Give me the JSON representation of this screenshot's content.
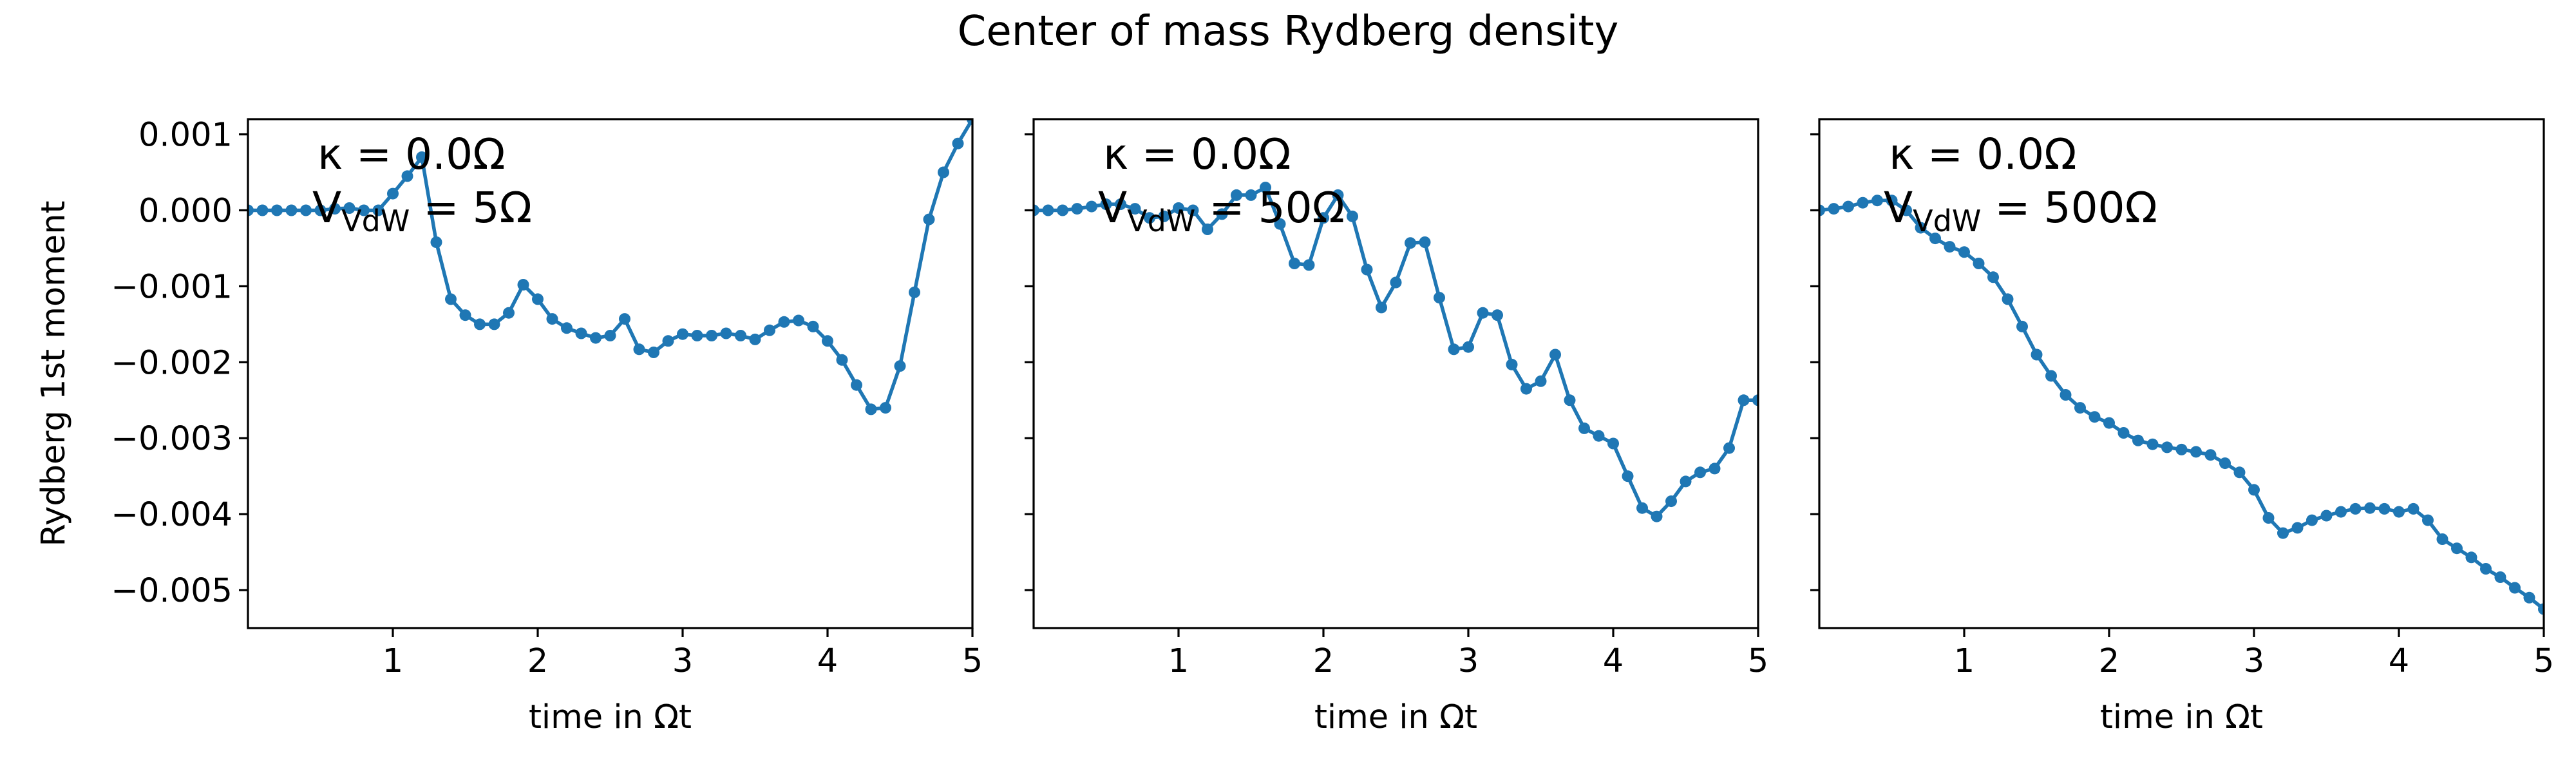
{
  "figure": {
    "title": "Center of mass Rydberg density",
    "series_color": "#1f77b4"
  },
  "chart_data": [
    {
      "type": "line",
      "title": "",
      "xlabel": "time in Ωt",
      "ylabel": "Rydberg 1st moment",
      "xlim": [
        0.0,
        5.0
      ],
      "ylim": [
        -0.0055,
        0.0012
      ],
      "xticks": [
        1,
        2,
        3,
        4,
        5
      ],
      "yticks": [
        0.001,
        0.0,
        -0.001,
        -0.002,
        -0.003,
        -0.004,
        -0.005
      ],
      "ytick_labels": [
        "0.001",
        "0.000",
        "−0.001",
        "−0.002",
        "−0.003",
        "−0.004",
        "−0.005"
      ],
      "grid": false,
      "annotation": {
        "kappa_line": "κ = 0.0Ω",
        "v_symbol": "V",
        "v_subscript": "VdW",
        "v_value": " = 5Ω"
      },
      "x": [
        0.0,
        0.1,
        0.2,
        0.3,
        0.4,
        0.5,
        0.6,
        0.7,
        0.8,
        0.9,
        1.0,
        1.1,
        1.2,
        1.3,
        1.4,
        1.5,
        1.6,
        1.7,
        1.8,
        1.9,
        2.0,
        2.1,
        2.2,
        2.3,
        2.4,
        2.5,
        2.6,
        2.7,
        2.8,
        2.9,
        3.0,
        3.1,
        3.2,
        3.3,
        3.4,
        3.5,
        3.6,
        3.7,
        3.8,
        3.9,
        4.0,
        4.1,
        4.2,
        4.3,
        4.4,
        4.5,
        4.6,
        4.7,
        4.8,
        4.9,
        5.0
      ],
      "y": [
        0.0,
        0.0,
        0.0,
        0.0,
        0.0,
        0.0,
        2e-05,
        3e-05,
        0.0,
        0.0,
        0.00022,
        0.00045,
        0.0007,
        -0.00042,
        -0.00117,
        -0.00138,
        -0.0015,
        -0.0015,
        -0.00135,
        -0.00098,
        -0.00117,
        -0.00143,
        -0.00155,
        -0.00162,
        -0.00168,
        -0.00165,
        -0.00143,
        -0.00183,
        -0.00187,
        -0.00172,
        -0.00163,
        -0.00165,
        -0.00165,
        -0.00162,
        -0.00165,
        -0.0017,
        -0.00158,
        -0.00147,
        -0.00145,
        -0.00153,
        -0.00172,
        -0.00197,
        -0.0023,
        -0.00262,
        -0.0026,
        -0.00205,
        -0.00108,
        -0.00012,
        0.0005,
        0.00088,
        0.0012
      ]
    },
    {
      "type": "line",
      "title": "",
      "xlabel": "time in Ωt",
      "ylabel": "",
      "xlim": [
        0.0,
        5.0
      ],
      "ylim": [
        -0.0055,
        0.0012
      ],
      "xticks": [
        1,
        2,
        3,
        4,
        5
      ],
      "yticks": [
        0.001,
        0.0,
        -0.001,
        -0.002,
        -0.003,
        -0.004,
        -0.005
      ],
      "grid": false,
      "annotation": {
        "kappa_line": "κ = 0.0Ω",
        "v_symbol": "V",
        "v_subscript": "VdW",
        "v_value": " = 50Ω"
      },
      "x": [
        0.0,
        0.1,
        0.2,
        0.3,
        0.4,
        0.5,
        0.6,
        0.7,
        0.8,
        0.9,
        1.0,
        1.1,
        1.2,
        1.3,
        1.4,
        1.5,
        1.6,
        1.7,
        1.8,
        1.9,
        2.0,
        2.1,
        2.2,
        2.3,
        2.4,
        2.5,
        2.6,
        2.7,
        2.8,
        2.9,
        3.0,
        3.1,
        3.2,
        3.3,
        3.4,
        3.5,
        3.6,
        3.7,
        3.8,
        3.9,
        4.0,
        4.1,
        4.2,
        4.3,
        4.4,
        4.5,
        4.6,
        4.7,
        4.8,
        4.9,
        5.0
      ],
      "y": [
        0.0,
        0.0,
        0.0,
        2e-05,
        5e-05,
        8e-05,
        8e-05,
        2e-05,
        -0.0001,
        -8e-05,
        3e-05,
        0.0,
        -0.00025,
        -5e-05,
        0.0002,
        0.0002,
        0.0003,
        -0.00018,
        -0.0007,
        -0.00072,
        -0.0001,
        0.0002,
        -8e-05,
        -0.00078,
        -0.00128,
        -0.00095,
        -0.00043,
        -0.00042,
        -0.00115,
        -0.00183,
        -0.0018,
        -0.00135,
        -0.00138,
        -0.00203,
        -0.00235,
        -0.00225,
        -0.0019,
        -0.0025,
        -0.00287,
        -0.00297,
        -0.00307,
        -0.0035,
        -0.00392,
        -0.00403,
        -0.00383,
        -0.00357,
        -0.00345,
        -0.0034,
        -0.00313,
        -0.0025,
        -0.0025
      ]
    },
    {
      "type": "line",
      "title": "",
      "xlabel": "time in Ωt",
      "ylabel": "",
      "xlim": [
        0.0,
        5.0
      ],
      "ylim": [
        -0.0055,
        0.0012
      ],
      "xticks": [
        1,
        2,
        3,
        4,
        5
      ],
      "yticks": [
        0.001,
        0.0,
        -0.001,
        -0.002,
        -0.003,
        -0.004,
        -0.005
      ],
      "grid": false,
      "annotation": {
        "kappa_line": "κ = 0.0Ω",
        "v_symbol": "V",
        "v_subscript": "VdW",
        "v_value": " = 500Ω"
      },
      "x": [
        0.0,
        0.1,
        0.2,
        0.3,
        0.4,
        0.5,
        0.6,
        0.7,
        0.8,
        0.9,
        1.0,
        1.1,
        1.2,
        1.3,
        1.4,
        1.5,
        1.6,
        1.7,
        1.8,
        1.9,
        2.0,
        2.1,
        2.2,
        2.3,
        2.4,
        2.5,
        2.6,
        2.7,
        2.8,
        2.9,
        3.0,
        3.1,
        3.2,
        3.3,
        3.4,
        3.5,
        3.6,
        3.7,
        3.8,
        3.9,
        4.0,
        4.1,
        4.2,
        4.3,
        4.4,
        4.5,
        4.6,
        4.7,
        4.8,
        4.9,
        5.0
      ],
      "y": [
        0.0,
        2e-05,
        5e-05,
        0.0001,
        0.00013,
        0.00013,
        0.0,
        -0.00023,
        -0.00037,
        -0.00048,
        -0.00055,
        -0.0007,
        -0.00088,
        -0.00117,
        -0.00153,
        -0.0019,
        -0.00218,
        -0.00243,
        -0.0026,
        -0.00272,
        -0.0028,
        -0.00293,
        -0.00303,
        -0.00308,
        -0.00312,
        -0.00315,
        -0.00318,
        -0.00322,
        -0.00333,
        -0.00345,
        -0.00368,
        -0.00405,
        -0.00425,
        -0.00418,
        -0.00408,
        -0.00402,
        -0.00397,
        -0.00393,
        -0.00392,
        -0.00393,
        -0.00397,
        -0.00393,
        -0.00408,
        -0.00433,
        -0.00445,
        -0.00457,
        -0.00472,
        -0.00483,
        -0.00497,
        -0.0051,
        -0.00525
      ]
    }
  ]
}
